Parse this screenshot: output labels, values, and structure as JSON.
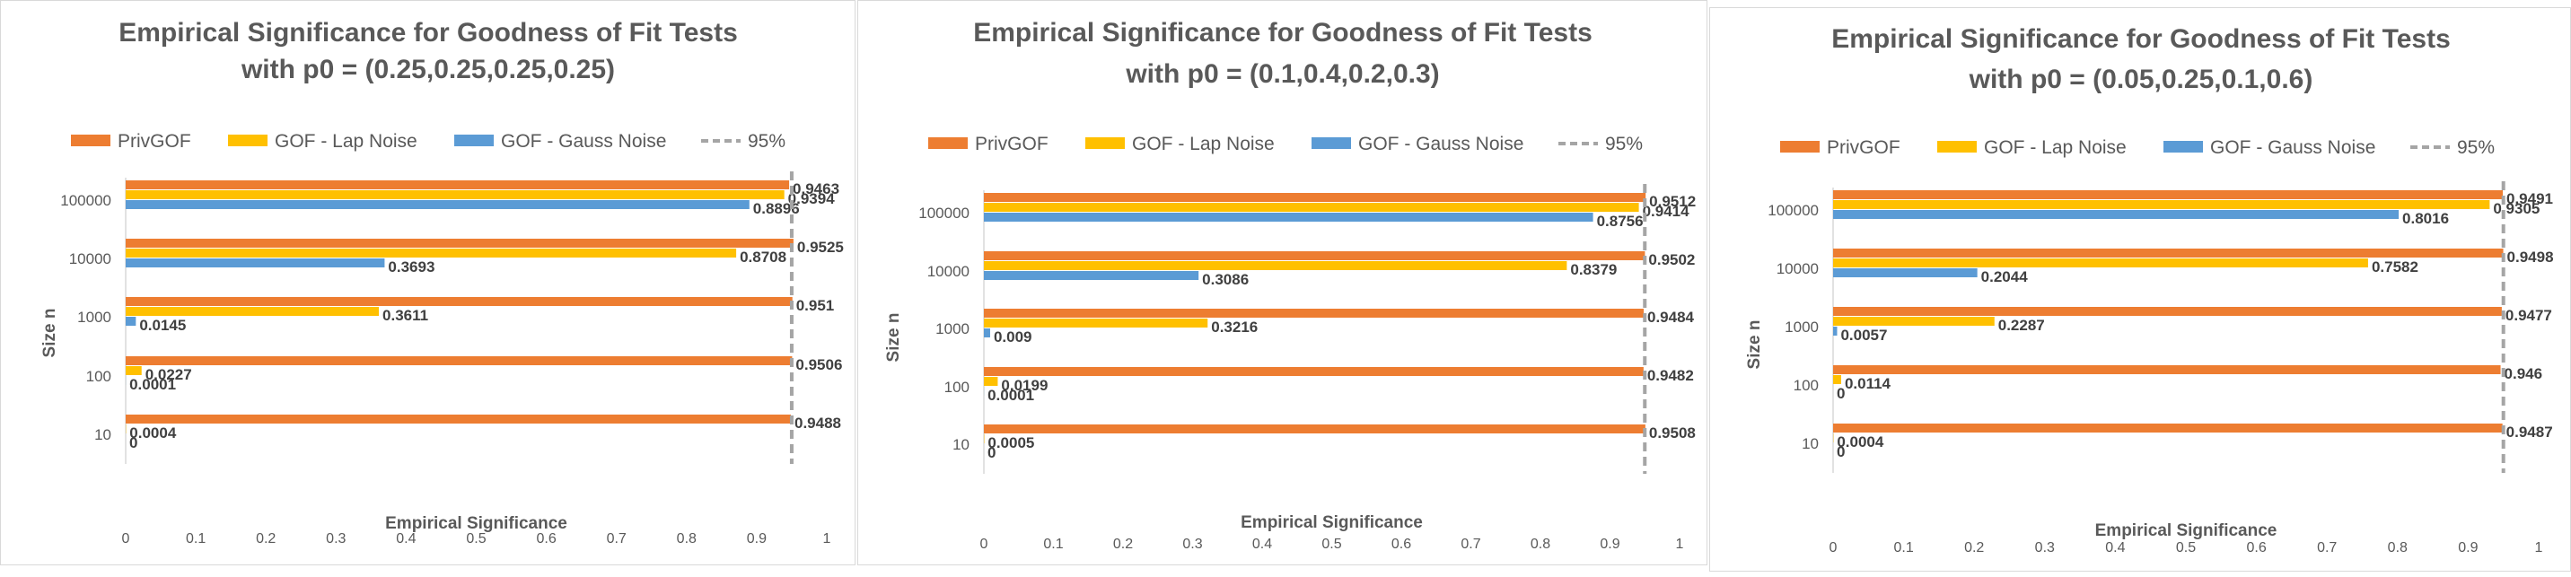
{
  "colors": {
    "privgof": "#ED7D31",
    "lap": "#FFC000",
    "gauss": "#5B9BD5",
    "ref": "#A5A5A5",
    "title": "#595959",
    "axis_text": "#595959",
    "label_text": "#404040",
    "axis_line": "#D9D9D9"
  },
  "chart_data": [
    {
      "type": "bar",
      "orientation": "horizontal",
      "title_lines": [
        "Empirical Significance for Goodness of Fit Tests",
        "with p0 = (0.25,0.25,0.25,0.25)"
      ],
      "xlabel": "Empirical Significance",
      "ylabel": "Size n",
      "categories": [
        "100000",
        "10000",
        "1000",
        "100",
        "10"
      ],
      "xlim": [
        0,
        1
      ],
      "xticks": [
        "0",
        "0.1",
        "0.2",
        "0.3",
        "0.4",
        "0.5",
        "0.6",
        "0.7",
        "0.8",
        "0.9",
        "1"
      ],
      "reference": {
        "name": "95%",
        "value": 0.95
      },
      "legend": [
        "PrivGOF",
        "GOF - Lap Noise",
        "GOF - Gauss Noise",
        "95%"
      ],
      "series": [
        {
          "name": "PrivGOF",
          "values": [
            0.9463,
            0.9525,
            0.951,
            0.9506,
            0.9488
          ],
          "labels": [
            "0.9463",
            "0.9525",
            "0.951",
            "0.9506",
            "0.9488"
          ]
        },
        {
          "name": "GOF - Lap Noise",
          "values": [
            0.9394,
            0.8708,
            0.3611,
            0.0227,
            0.0004
          ],
          "labels": [
            "0.9394",
            "0.8708",
            "0.3611",
            "0.0227",
            "0.0004"
          ]
        },
        {
          "name": "GOF - Gauss Noise",
          "values": [
            0.8896,
            0.3693,
            0.0145,
            0.0001,
            0
          ],
          "labels": [
            "0.8896",
            "0.3693",
            "0.0145",
            "0.0001",
            "0"
          ]
        }
      ]
    },
    {
      "type": "bar",
      "orientation": "horizontal",
      "title_lines": [
        "Empirical Significance for Goodness of Fit Tests",
        "with p0 = (0.1,0.4,0.2,0.3)"
      ],
      "xlabel": "Empirical Significance",
      "ylabel": "Size n",
      "categories": [
        "100000",
        "10000",
        "1000",
        "100",
        "10"
      ],
      "xlim": [
        0,
        1
      ],
      "xticks": [
        "0",
        "0.1",
        "0.2",
        "0.3",
        "0.4",
        "0.5",
        "0.6",
        "0.7",
        "0.8",
        "0.9",
        "1"
      ],
      "reference": {
        "name": "95%",
        "value": 0.95
      },
      "legend": [
        "PrivGOF",
        "GOF - Lap Noise",
        "GOF - Gauss Noise",
        "95%"
      ],
      "series": [
        {
          "name": "PrivGOF",
          "values": [
            0.9512,
            0.9502,
            0.9484,
            0.9482,
            0.9508
          ],
          "labels": [
            "0.9512",
            "0.9502",
            "0.9484",
            "0.9482",
            "0.9508"
          ]
        },
        {
          "name": "GOF - Lap Noise",
          "values": [
            0.9414,
            0.8379,
            0.3216,
            0.0199,
            0.0005
          ],
          "labels": [
            "0.9414",
            "0.8379",
            "0.3216",
            "0.0199",
            "0.0005"
          ]
        },
        {
          "name": "GOF - Gauss Noise",
          "values": [
            0.8756,
            0.3086,
            0.009,
            0.0001,
            0
          ],
          "labels": [
            "0.8756",
            "0.3086",
            "0.009",
            "0.0001",
            "0"
          ]
        }
      ]
    },
    {
      "type": "bar",
      "orientation": "horizontal",
      "title_lines": [
        "Empirical Significance for Goodness of Fit Tests",
        "with   p0 = (0.05,0.25,0.1,0.6)"
      ],
      "xlabel": "Empirical Significance",
      "ylabel": "Size n",
      "categories": [
        "100000",
        "10000",
        "1000",
        "100",
        "10"
      ],
      "xlim": [
        0,
        1
      ],
      "xticks": [
        "0",
        "0.1",
        "0.2",
        "0.3",
        "0.4",
        "0.5",
        "0.6",
        "0.7",
        "0.8",
        "0.9",
        "1"
      ],
      "reference": {
        "name": "95%",
        "value": 0.95
      },
      "legend": [
        "PrivGOF",
        "GOF - Lap Noise",
        "GOF - Gauss Noise",
        "95%"
      ],
      "series": [
        {
          "name": "PrivGOF",
          "values": [
            0.9491,
            0.9498,
            0.9477,
            0.946,
            0.9487
          ],
          "labels": [
            "0.9491",
            "0.9498",
            "0.9477",
            "0.946",
            "0.9487"
          ]
        },
        {
          "name": "GOF - Lap Noise",
          "values": [
            0.9305,
            0.7582,
            0.2287,
            0.0114,
            0.0004
          ],
          "labels": [
            "0.9305",
            "0.7582",
            "0.2287",
            "0.0114",
            "0.0004"
          ]
        },
        {
          "name": "GOF - Gauss Noise",
          "values": [
            0.8016,
            0.2044,
            0.0057,
            0,
            0
          ],
          "labels": [
            "0.8016",
            "0.2044",
            "0.0057",
            "0",
            "0"
          ]
        }
      ]
    }
  ]
}
